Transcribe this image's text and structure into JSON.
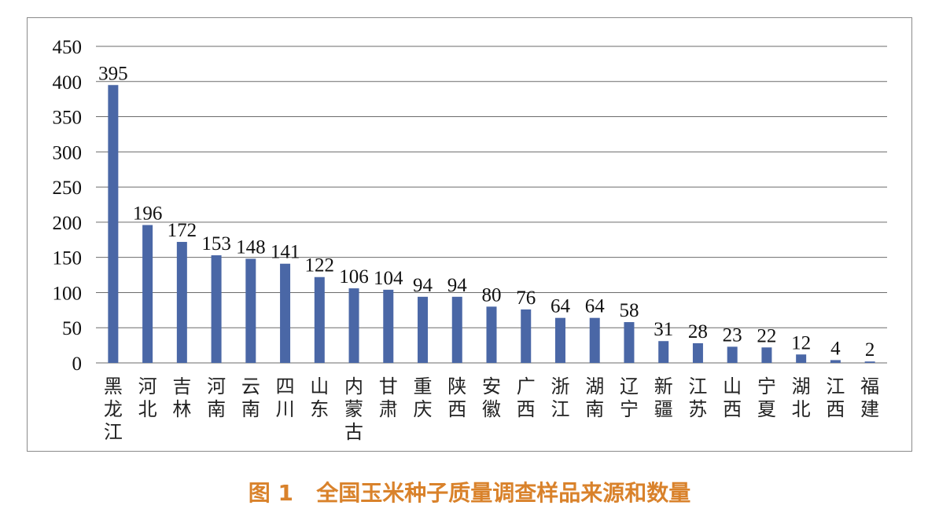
{
  "caption": "图 1   全国玉米种子质量调查样品来源和数量",
  "colors": {
    "bar": "#4a67a6",
    "grid": "#6b6b6b",
    "caption": "#d9822b"
  },
  "chart_data": {
    "type": "bar",
    "categories": [
      "黑龙江",
      "河北",
      "吉林",
      "河南",
      "云南",
      "四川",
      "山东",
      "内蒙古",
      "甘肃",
      "重庆",
      "陕西",
      "安徽",
      "广西",
      "浙江",
      "湖南",
      "辽宁",
      "新疆",
      "江苏",
      "山西",
      "宁夏",
      "湖北",
      "江西",
      "福建"
    ],
    "values": [
      395,
      196,
      172,
      153,
      148,
      141,
      122,
      106,
      104,
      94,
      94,
      80,
      76,
      64,
      64,
      58,
      31,
      28,
      23,
      22,
      12,
      4,
      2
    ],
    "ylim": [
      0,
      450
    ],
    "yticks": [
      0,
      50,
      100,
      150,
      200,
      250,
      300,
      350,
      400,
      450
    ],
    "grid": true,
    "legend": "none",
    "title": "",
    "xlabel": "",
    "ylabel": ""
  }
}
